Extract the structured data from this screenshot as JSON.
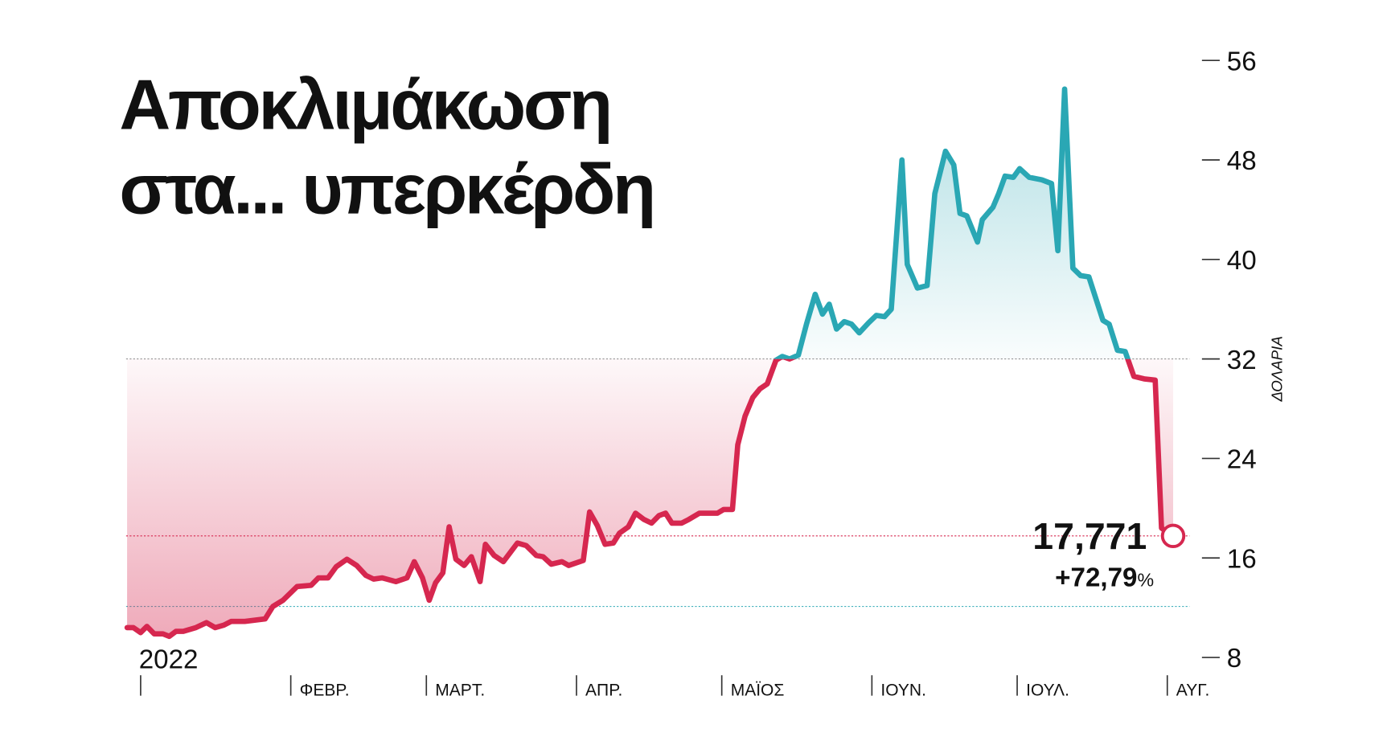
{
  "chart_data": {
    "type": "line",
    "title_lines": [
      "Αποκλιμάκωση",
      "στα... υπερκέρδη"
    ],
    "y_axis_label": "ΔΟΛΑΡΙΑ",
    "x": [
      -2.8,
      -1.5,
      0,
      1.3,
      2.8,
      4.6,
      5.9,
      7.3,
      8.8,
      11.4,
      13.6,
      15.4,
      17.2,
      18.7,
      21.5,
      25.7,
      27.3,
      29.4,
      32.3,
      35.2,
      36.7,
      38.7,
      40.4,
      42.6,
      44.6,
      46.5,
      48.1,
      49.9,
      52.7,
      55,
      56.5,
      58.2,
      59.6,
      60.9,
      62.4,
      63.7,
      65.1,
      66.8,
      68.3,
      70.1,
      71.2,
      73,
      74.9,
      77.8,
      79.6,
      81.7,
      83.1,
      84.8,
      87,
      88.4,
      91.4,
      92.7,
      94.3,
      95.9,
      97.6,
      98.9,
      100.7,
      102.2,
      103.9,
      105.5,
      107,
      108.4,
      109.7,
      111.7,
      113.2,
      115.4,
      116.9,
      119.1,
      120.4,
      122.2,
      123.3,
      124.8,
      126.4,
      127.9,
      129.4,
      131.2,
      132.5,
      134,
      135.8,
      137.5,
      139.3,
      140.8,
      142.2,
      143.7,
      145.3,
      146.8,
      148.4,
      150.3,
      151.9,
      153.6,
      155,
      157.2,
      158.3,
      160.4,
      162.4,
      164,
      166.2,
      167.9,
      169.2,
      170.6,
      172.8,
      173.8,
      176,
      177.2,
      178.5,
      180.2,
      181.5,
      183.5,
      186.1,
      188.1,
      189.4,
      190.8,
      192.5,
      194.1,
      195.8,
      198.7,
      200,
      201.7,
      203.3,
      205.1,
      207.2,
      209.5,
      210.8,
      213.2
    ],
    "values": [
      10.4,
      10.4,
      10,
      10.5,
      9.9,
      9.9,
      9.7,
      10.1,
      10.1,
      10.4,
      10.8,
      10.4,
      10.6,
      10.9,
      10.9,
      11.1,
      12.1,
      12.6,
      13.7,
      13.8,
      14.4,
      14.4,
      15.3,
      15.9,
      15.4,
      14.6,
      14.3,
      14.4,
      14.1,
      14.4,
      15.7,
      14.4,
      12.6,
      14,
      14.8,
      18.5,
      15.9,
      15.4,
      16.1,
      14.1,
      17.1,
      16.2,
      15.7,
      17.2,
      17,
      16.2,
      16.1,
      15.5,
      15.7,
      15.4,
      15.8,
      19.7,
      18.6,
      17.1,
      17.2,
      18,
      18.5,
      19.6,
      19.1,
      18.8,
      19.4,
      19.6,
      18.8,
      18.8,
      19.1,
      19.6,
      19.6,
      19.6,
      19.9,
      19.9,
      25.1,
      27.4,
      28.9,
      29.6,
      30,
      31.9,
      32.2,
      32,
      32.3,
      34.8,
      37.2,
      35.6,
      36.4,
      34.4,
      35,
      34.8,
      34.1,
      34.9,
      35.5,
      35.4,
      36,
      48,
      39.6,
      37.7,
      37.9,
      45.3,
      48.7,
      47.6,
      43.7,
      43.5,
      41.4,
      43.2,
      44.2,
      45.3,
      46.7,
      46.6,
      47.3,
      46.6,
      46.4,
      46.1,
      40.7,
      53.7,
      39.3,
      38.7,
      38.6,
      35.1,
      34.8,
      32.7,
      32.6,
      30.6,
      30.4,
      30.3,
      18.4,
      17.771
    ],
    "threshold": 32,
    "colors": {
      "above": "#2aa7b4",
      "below": "#d6274f"
    },
    "reference_lines": [
      {
        "value": 32,
        "color": "#888888"
      },
      {
        "value": 17.771,
        "color": "#d6274f"
      },
      {
        "value": 12.1,
        "color": "#2aa7b4"
      }
    ],
    "annotation": {
      "value": "17,771",
      "change": "+72,79",
      "unit": "%"
    },
    "xlim": [
      -3,
      220
    ],
    "xticks": [
      {
        "value": 0,
        "label": "2022"
      },
      {
        "value": 31,
        "label": "ΦΕΒΡ."
      },
      {
        "value": 59,
        "label": "ΜΑΡΤ."
      },
      {
        "value": 90,
        "label": "ΑΠΡ."
      },
      {
        "value": 120,
        "label": "ΜΑΪΟΣ"
      },
      {
        "value": 151,
        "label": "ΙΟΥΝ."
      },
      {
        "value": 181,
        "label": "ΙΟΥΛ."
      },
      {
        "value": 212,
        "label": "ΑΥΓ."
      }
    ],
    "ylim": [
      8,
      56
    ],
    "yticks": [
      8,
      16,
      24,
      32,
      40,
      48,
      56
    ]
  }
}
